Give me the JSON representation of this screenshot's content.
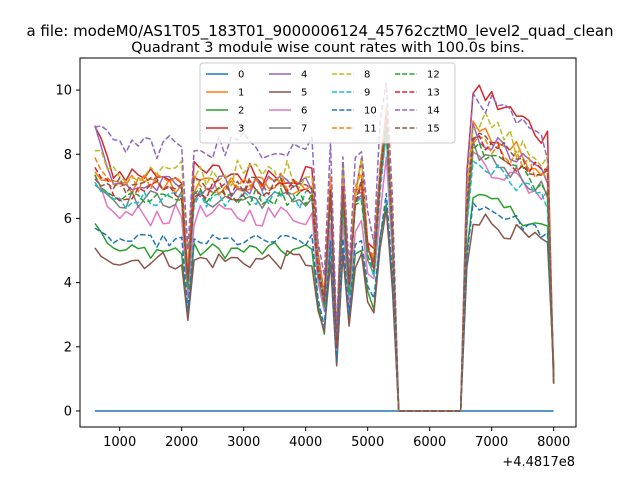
{
  "chart_data": {
    "type": "line",
    "suptitle": "a file: modeM0/AS1T05_183T01_9000006124_45762cztM0_level2_quad_clean",
    "title": "Quadrant 3 module wise count rates with 100.0s bins.",
    "xlabel": "",
    "ylabel": "",
    "x_offset_label": "+4.4817e8",
    "xlim": [
      360,
      8360
    ],
    "ylim": [
      -0.5,
      11
    ],
    "x_ticks": [
      1000,
      2000,
      3000,
      4000,
      5000,
      6000,
      7000,
      8000
    ],
    "y_ticks": [
      0,
      2,
      4,
      6,
      8,
      10
    ],
    "x_ticks_labels": [
      "1000",
      "2000",
      "3000",
      "4000",
      "5000",
      "6000",
      "7000",
      "8000"
    ],
    "y_ticks_labels": [
      "0",
      "2",
      "4",
      "6",
      "8",
      "10"
    ],
    "legend_position": "upper-center",
    "legend_columns": 4,
    "segments": [
      {
        "x_start": 600,
        "x_end": 4100,
        "step": 100
      },
      {
        "x_start": 4200,
        "x_end": 5400,
        "step": 100
      },
      {
        "x_start": 5500,
        "x_end": 6500,
        "step": 100
      },
      {
        "x_start": 6600,
        "x_end": 8000,
        "step": 100
      }
    ],
    "series": [
      {
        "name": "0",
        "color": "#1f77b4",
        "style": "solid",
        "base": 0.0,
        "noise": 0.0,
        "early": 0.0,
        "late": 0.0
      },
      {
        "name": "1",
        "color": "#ff7f0e",
        "style": "solid",
        "base": 7.0,
        "noise": 0.35,
        "early": 7.4,
        "late": 8.2
      },
      {
        "name": "2",
        "color": "#2ca02c",
        "style": "solid",
        "base": 5.0,
        "noise": 0.25,
        "early": 5.9,
        "late": 6.2
      },
      {
        "name": "3",
        "color": "#d62728",
        "style": "solid",
        "base": 7.4,
        "noise": 0.4,
        "early": 8.8,
        "late": 9.3
      },
      {
        "name": "4",
        "color": "#9467bd",
        "style": "solid",
        "base": 7.0,
        "noise": 0.35,
        "early": 8.9,
        "late": 8.0
      },
      {
        "name": "5",
        "color": "#8c564b",
        "style": "solid",
        "base": 4.7,
        "noise": 0.3,
        "early": 5.0,
        "late": 5.6
      },
      {
        "name": "6",
        "color": "#e377c2",
        "style": "solid",
        "base": 6.1,
        "noise": 0.35,
        "early": 7.3,
        "late": 7.3
      },
      {
        "name": "7",
        "color": "#7f7f7f",
        "style": "solid",
        "base": 6.6,
        "noise": 0.3,
        "early": 7.1,
        "late": 7.5
      },
      {
        "name": "8",
        "color": "#bcbd22",
        "style": "dashed",
        "base": 7.4,
        "noise": 0.45,
        "early": 8.2,
        "late": 8.4
      },
      {
        "name": "9",
        "color": "#17becf",
        "style": "dashed",
        "base": 6.6,
        "noise": 0.3,
        "early": 7.1,
        "late": 7.2
      },
      {
        "name": "10",
        "color": "#1f77b4",
        "style": "dashed",
        "base": 5.3,
        "noise": 0.2,
        "early": 5.6,
        "late": 6.0
      },
      {
        "name": "11",
        "color": "#ff7f0e",
        "style": "dashed",
        "base": 7.1,
        "noise": 0.35,
        "early": 7.8,
        "late": 8.0
      },
      {
        "name": "12",
        "color": "#2ca02c",
        "style": "dashed",
        "base": 6.7,
        "noise": 0.3,
        "early": 7.3,
        "late": 7.6
      },
      {
        "name": "13",
        "color": "#d62728",
        "style": "dashed",
        "base": 6.9,
        "noise": 0.35,
        "early": 7.6,
        "late": 7.9
      },
      {
        "name": "14",
        "color": "#9467bd",
        "style": "dashed",
        "base": 8.3,
        "noise": 0.45,
        "early": 9.0,
        "late": 9.0
      },
      {
        "name": "15",
        "color": "#8c564b",
        "style": "dashed",
        "base": 7.0,
        "noise": 0.3,
        "early": 7.2,
        "late": 8.0
      }
    ]
  }
}
